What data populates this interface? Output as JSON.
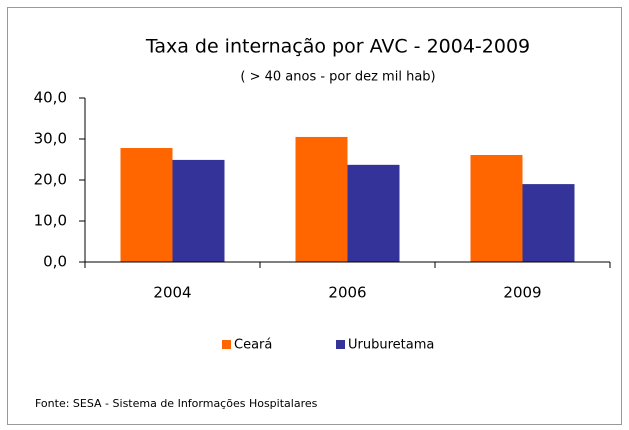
{
  "chart_data": {
    "type": "bar",
    "title": "Taxa de internação por AVC - 2004-2009",
    "subtitle": "( > 40 anos - por dez mil hab)",
    "source": "Fonte: SESA - Sistema de Informações Hospitalares",
    "categories": [
      "2004",
      "2006",
      "2009"
    ],
    "series": [
      {
        "name": "Ceará",
        "color": "#ff6600",
        "values": [
          27.8,
          30.5,
          26.1
        ]
      },
      {
        "name": "Uruburetama",
        "color": "#333399",
        "values": [
          24.9,
          23.7,
          19.0
        ]
      }
    ],
    "ylim": [
      0,
      40
    ],
    "yticks": [
      {
        "value": 0,
        "label": "0,0"
      },
      {
        "value": 10,
        "label": "10,0"
      },
      {
        "value": 20,
        "label": "20,0"
      },
      {
        "value": 30,
        "label": "30,0"
      },
      {
        "value": 40,
        "label": "40,0"
      }
    ],
    "legend": "bottom",
    "grid": false
  }
}
